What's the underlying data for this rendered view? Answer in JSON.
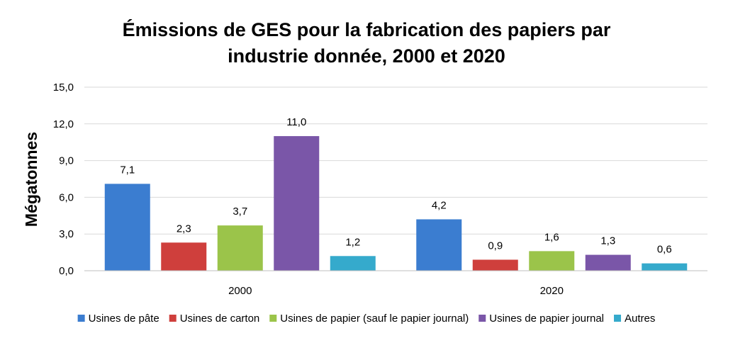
{
  "chart_data": {
    "type": "bar",
    "title_lines": [
      "Émissions de GES pour la fabrication des papiers par",
      "industrie donnée, 2000 et 2020"
    ],
    "xlabel": "",
    "ylabel": "Mégatonnes",
    "ylim": [
      0,
      15
    ],
    "yticks": [
      0,
      3,
      6,
      9,
      12,
      15
    ],
    "ytick_labels": [
      "0,0",
      "3,0",
      "6,0",
      "9,0",
      "12,0",
      "15,0"
    ],
    "grid": true,
    "legend_position": "bottom",
    "categories": [
      "2000",
      "2020"
    ],
    "series": [
      {
        "name": "Usines de pâte",
        "color": "#3b7dd0",
        "values": [
          7.1,
          4.2
        ],
        "labels": [
          "7,1",
          "4,2"
        ]
      },
      {
        "name": "Usines de carton",
        "color": "#cf3f3c",
        "values": [
          2.3,
          0.9
        ],
        "labels": [
          "2,3",
          "0,9"
        ]
      },
      {
        "name": "Usines de papier (sauf le papier journal)",
        "color": "#9bc44a",
        "values": [
          3.7,
          1.6
        ],
        "labels": [
          "3,7",
          "1,6"
        ]
      },
      {
        "name": "Usines de papier journal",
        "color": "#7a56a8",
        "values": [
          11.0,
          1.3
        ],
        "labels": [
          "11,0",
          "1,3"
        ]
      },
      {
        "name": "Autres",
        "color": "#35aacc",
        "values": [
          1.2,
          0.6
        ],
        "labels": [
          "1,2",
          "0,6"
        ]
      }
    ]
  }
}
